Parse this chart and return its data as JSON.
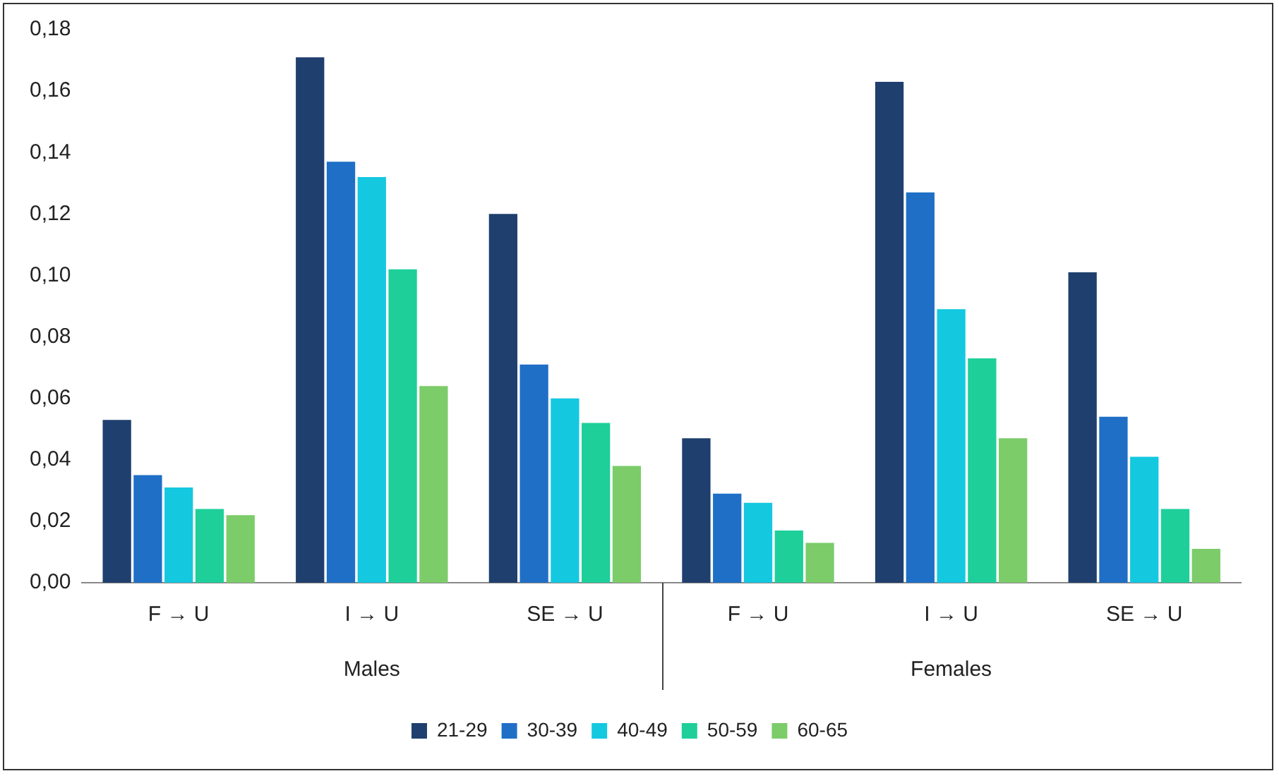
{
  "chart_data": {
    "type": "bar",
    "categories": [
      "F → U",
      "I → U",
      "SE → U",
      "F → U",
      "I → U",
      "SE → U"
    ],
    "annotations": [
      "Males",
      "Females"
    ],
    "series": [
      {
        "name": "21-29",
        "color": "#1f3f6e",
        "values": [
          0.053,
          0.171,
          0.12,
          0.047,
          0.163,
          0.101
        ]
      },
      {
        "name": "30-39",
        "color": "#1f6fc6",
        "values": [
          0.035,
          0.137,
          0.071,
          0.029,
          0.127,
          0.054
        ]
      },
      {
        "name": "40-49",
        "color": "#14c8e0",
        "values": [
          0.031,
          0.132,
          0.06,
          0.026,
          0.089,
          0.041
        ]
      },
      {
        "name": "50-59",
        "color": "#1ecf9a",
        "values": [
          0.024,
          0.102,
          0.052,
          0.017,
          0.073,
          0.024
        ]
      },
      {
        "name": "60-65",
        "color": "#7ccc6a",
        "values": [
          0.022,
          0.064,
          0.038,
          0.013,
          0.047,
          0.011
        ]
      }
    ],
    "ylim": [
      0,
      0.18
    ],
    "yticks": [
      {
        "value": 0,
        "label": "0,00"
      },
      {
        "value": 0.02,
        "label": "0,02"
      },
      {
        "value": 0.04,
        "label": "0,04"
      },
      {
        "value": 0.06,
        "label": "0,06"
      },
      {
        "value": 0.08,
        "label": "0,08"
      },
      {
        "value": 0.1,
        "label": "0,10"
      },
      {
        "value": 0.12,
        "label": "0,12"
      },
      {
        "value": 0.14,
        "label": "0,14"
      },
      {
        "value": 0.16,
        "label": "0,16"
      },
      {
        "value": 0.18,
        "label": "0,18"
      }
    ],
    "grid": false,
    "legend": "bottom"
  }
}
